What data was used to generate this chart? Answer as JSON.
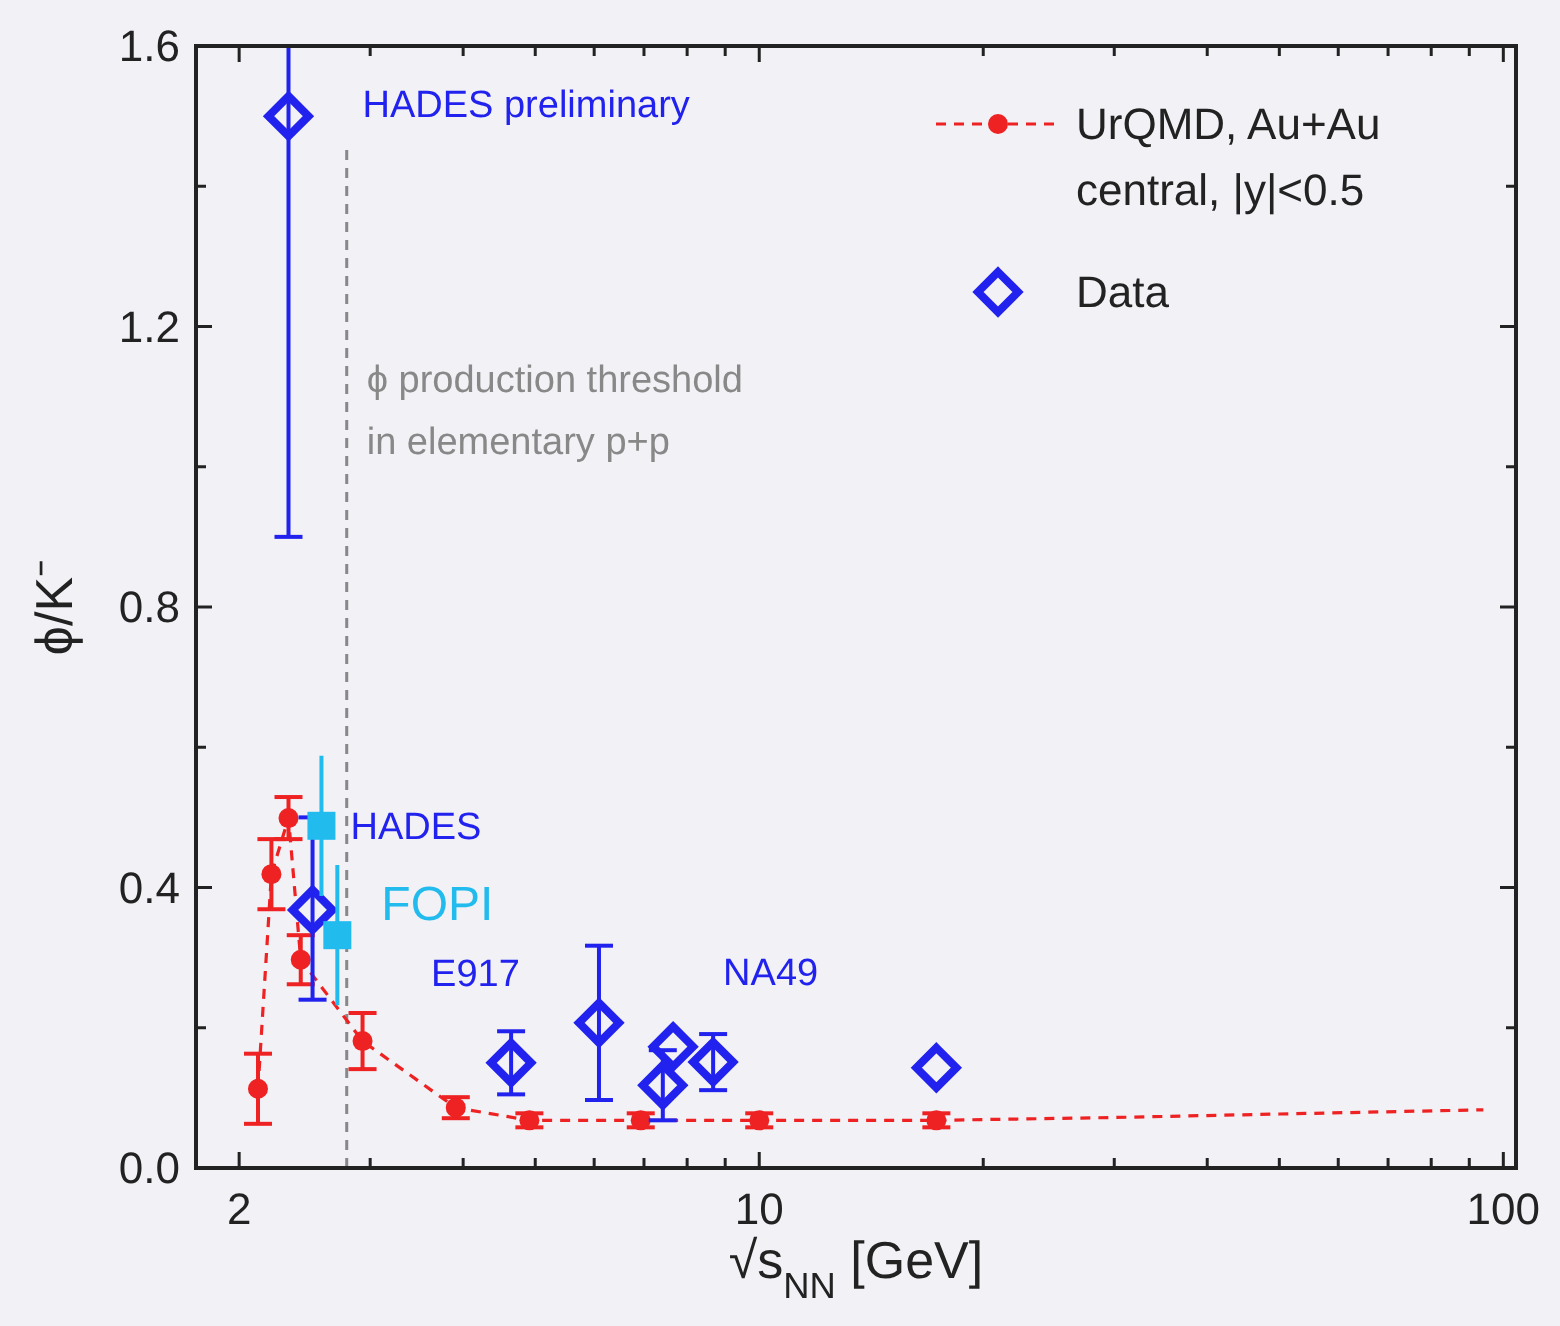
{
  "chart_data": {
    "type": "line",
    "xlabel": "√s$_{NN}$ [GeV]",
    "ylabel": "ϕ/K⁻",
    "log": "x",
    "xlim": [
      1.75,
      104
    ],
    "ylim": [
      0,
      1.6
    ],
    "xticks": [
      2,
      {
        "value": 3,
        "label": null
      },
      {
        "value": 4,
        "label": null
      },
      {
        "value": 5,
        "label": null
      },
      {
        "value": 6,
        "label": null
      },
      {
        "value": 7,
        "label": null
      },
      {
        "value": 8,
        "label": null
      },
      {
        "value": 9,
        "label": null
      },
      10,
      {
        "value": 20,
        "label": null
      },
      {
        "value": 30,
        "label": null
      },
      {
        "value": 40,
        "label": null
      },
      {
        "value": 50,
        "label": null
      },
      {
        "value": 60,
        "label": null
      },
      {
        "value": 70,
        "label": null
      },
      {
        "value": 80,
        "label": null
      },
      {
        "value": 90,
        "label": null
      },
      100
    ],
    "yticks": [
      {
        "value": 0,
        "label": "0.0"
      },
      {
        "value": 0.2,
        "label": null
      },
      0.4,
      {
        "value": 0.6,
        "label": null
      },
      0.8,
      {
        "value": 1.0,
        "label": null
      },
      1.2,
      {
        "value": 1.4,
        "label": null
      },
      1.6
    ],
    "grid": false,
    "legend": "top right",
    "series": [
      {
        "name": "UrQMD, Au+Au\ncentral, |y|<0.5",
        "color": "#ee2222",
        "marker": "circle",
        "line_style": "dashed",
        "x": [
          2.12,
          2.21,
          2.33,
          2.42,
          2.93,
          3.91,
          4.91,
          6.93,
          10,
          17.3
        ],
        "values": [
          0.113,
          0.419,
          0.499,
          0.297,
          0.181,
          0.086,
          0.068,
          0.068,
          0.068,
          0.068
        ],
        "errors": [
          0.05,
          0.05,
          0.03,
          0.035,
          0.04,
          0.015,
          0.01,
          0.01,
          0.01,
          0.01
        ]
      },
      {
        "type": "line",
        "color": "#ee2222",
        "marker": "none",
        "line_style": "dashed",
        "x": [
          17.3,
          30,
          50,
          94
        ],
        "values": [
          0.068,
          0.072,
          0.077,
          0.083
        ]
      },
      {
        "name": "Data",
        "type": "scatter",
        "color": "#2222ee",
        "marker": "diamond",
        "x": [
          2.33,
          2.51,
          4.64,
          6.09,
          7.42,
          7.66,
          8.67,
          17.3
        ],
        "values": [
          1.5,
          0.368,
          0.15,
          0.207,
          0.118,
          0.173,
          0.151,
          0.143
        ],
        "errors": [
          [
            0.9,
            1.6
          ],
          [
            0.24,
            0.5
          ],
          0.045,
          0.11,
          0.05,
          null,
          0.04,
          null
        ]
      },
      {
        "type": "scatter",
        "color": "#22bbee",
        "marker": "square",
        "x": [
          2.58,
          2.71
        ],
        "values": [
          0.488,
          0.332
        ],
        "errors": [
          0.1,
          0.1
        ]
      }
    ],
    "ref_lines": [
      {
        "axis": "x",
        "value": 2.79,
        "label": "ϕ production threshold\nin elementary p+p",
        "color": "#888888",
        "line_style": "dashed"
      }
    ],
    "annotations": [
      {
        "text": "HADES preliminary",
        "x": 2.33,
        "y": 1.5
      },
      {
        "text": "HADES",
        "x": 2.51,
        "y": 0.368
      },
      {
        "text": "FOPI",
        "x": 2.71,
        "y": 0.332
      },
      {
        "text": "E917",
        "x": 4.64,
        "y": 0.15
      },
      {
        "text": "NA49",
        "x": 8.67,
        "y": 0.151
      }
    ]
  }
}
